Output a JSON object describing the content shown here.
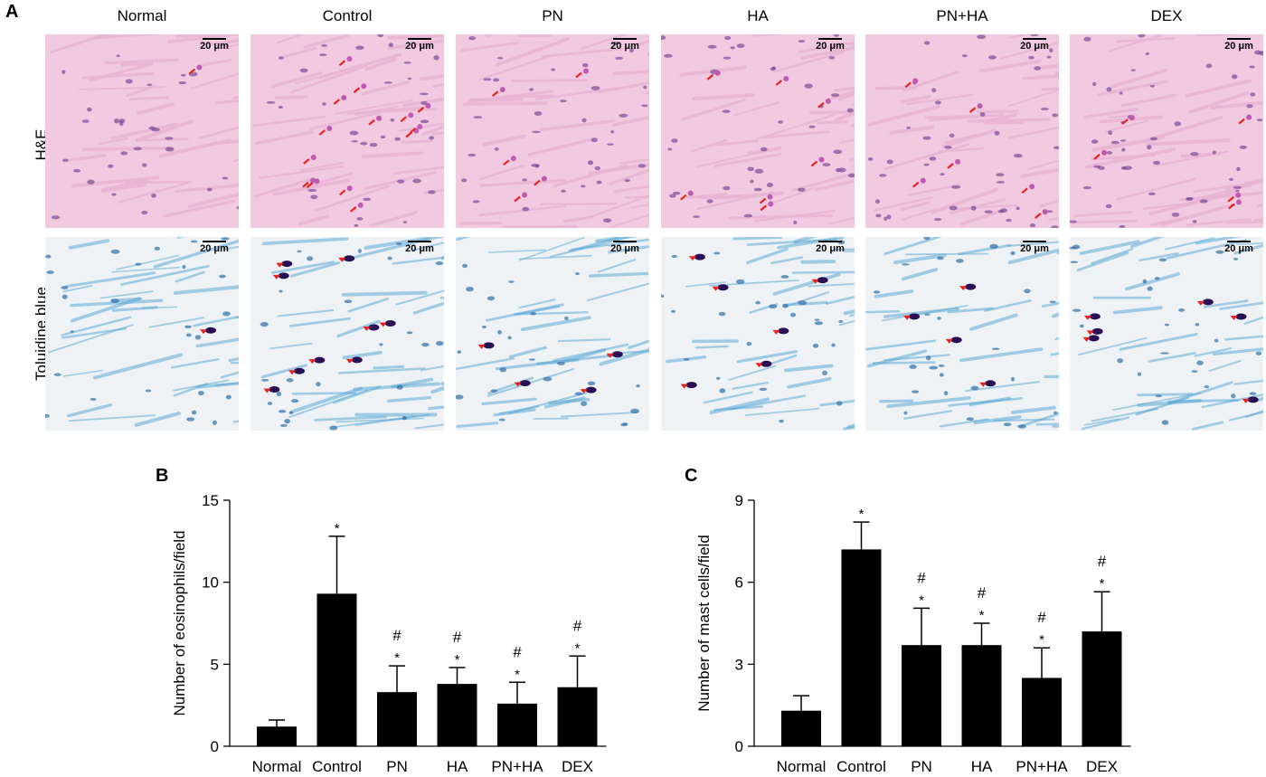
{
  "panel_a": {
    "letter": "A",
    "columns": [
      "Normal",
      "Control",
      "PN",
      "HA",
      "PN+HA",
      "DEX"
    ],
    "rows": [
      {
        "label": "H&E",
        "stain": "he",
        "colors": {
          "bg": "#f1c9e0",
          "fiber": "#e7b3d2",
          "nucleus": "#7b4a96",
          "marker": "#e8231f"
        }
      },
      {
        "label": "Toluidine blue",
        "stain": "tb",
        "colors": {
          "bg": "#eef2f4",
          "fiber": "#5da9d6",
          "nucleus": "#2d6fa8",
          "marker": "#e8231f",
          "mast": "#2b0f54"
        }
      }
    ],
    "scale_bar": "20 μm",
    "marker_counts": {
      "he": [
        1,
        14,
        5,
        7,
        6,
        5
      ],
      "tb": [
        1,
        9,
        4,
        6,
        4,
        6
      ]
    }
  },
  "chart_data": [
    {
      "letter": "B",
      "type": "bar",
      "title": "",
      "xlabel": "",
      "ylabel": "Number of eosinophils/field",
      "categories": [
        "Normal",
        "Control",
        "PN",
        "HA",
        "PN+HA",
        "DEX"
      ],
      "values": [
        1.2,
        9.3,
        3.3,
        3.8,
        2.6,
        3.6
      ],
      "errors": [
        0.4,
        3.5,
        1.6,
        1.0,
        1.3,
        1.9
      ],
      "annotations": [
        [],
        [
          "*"
        ],
        [
          "#",
          "*"
        ],
        [
          "#",
          "*"
        ],
        [
          "#",
          "*"
        ],
        [
          "#",
          "*"
        ]
      ],
      "ylim": [
        0,
        15
      ],
      "yticks": [
        0,
        5,
        10,
        15
      ],
      "bar_color": "#000000"
    },
    {
      "letter": "C",
      "type": "bar",
      "title": "",
      "xlabel": "",
      "ylabel": "Number of mast cells/field",
      "categories": [
        "Normal",
        "Control",
        "PN",
        "HA",
        "PN+HA",
        "DEX"
      ],
      "values": [
        1.3,
        7.2,
        3.7,
        3.7,
        2.5,
        4.2
      ],
      "errors": [
        0.55,
        1.0,
        1.35,
        0.8,
        1.1,
        1.45
      ],
      "annotations": [
        [],
        [
          "*"
        ],
        [
          "#",
          "*"
        ],
        [
          "#",
          "*"
        ],
        [
          "#",
          "*"
        ],
        [
          "#",
          "*"
        ]
      ],
      "ylim": [
        0,
        9
      ],
      "yticks": [
        0,
        3,
        6,
        9
      ],
      "bar_color": "#000000"
    }
  ]
}
